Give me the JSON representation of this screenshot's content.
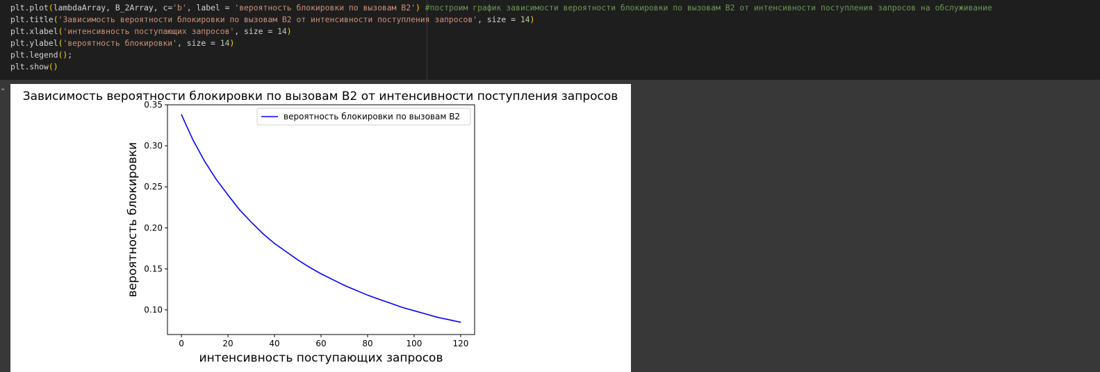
{
  "code": {
    "lines": [
      [
        {
          "t": "plt.plot",
          "c": "op"
        },
        {
          "t": "(",
          "c": "par"
        },
        {
          "t": "lambdaArray, B_2Array, c=",
          "c": "op"
        },
        {
          "t": "'b'",
          "c": "str"
        },
        {
          "t": ", label = ",
          "c": "op"
        },
        {
          "t": "'вероятность блокировки по вызовам B2'",
          "c": "str"
        },
        {
          "t": ")",
          "c": "par"
        },
        {
          "t": " ",
          "c": "op"
        },
        {
          "t": "#построим график зависимости вероятности блокировки по вызовам B2 от интенсивности поступления запросов на обслуживание",
          "c": "cmt"
        }
      ],
      [
        {
          "t": "plt.title",
          "c": "op"
        },
        {
          "t": "(",
          "c": "par"
        },
        {
          "t": "'Зависимость вероятности блокировки по вызовам B2 от интенсивности поступления запросов'",
          "c": "str"
        },
        {
          "t": ", size = ",
          "c": "op"
        },
        {
          "t": "14",
          "c": "num"
        },
        {
          "t": ")",
          "c": "par"
        }
      ],
      [
        {
          "t": "plt.xlabel",
          "c": "op"
        },
        {
          "t": "(",
          "c": "par"
        },
        {
          "t": "'интенсивность поступающих запросов'",
          "c": "str"
        },
        {
          "t": ", size = ",
          "c": "op"
        },
        {
          "t": "14",
          "c": "num"
        },
        {
          "t": ")",
          "c": "par"
        }
      ],
      [
        {
          "t": "plt.ylabel",
          "c": "op"
        },
        {
          "t": "(",
          "c": "par"
        },
        {
          "t": "'вероятность блокировки'",
          "c": "str"
        },
        {
          "t": ", size = ",
          "c": "op"
        },
        {
          "t": "14",
          "c": "num"
        },
        {
          "t": ")",
          "c": "par"
        }
      ],
      [
        {
          "t": "plt.legend",
          "c": "op"
        },
        {
          "t": "()",
          "c": "par"
        },
        {
          "t": ";",
          "c": "op"
        }
      ],
      [
        {
          "t": "plt.show",
          "c": "op"
        },
        {
          "t": "()",
          "c": "par"
        }
      ]
    ]
  },
  "output": {
    "collapse_icon": "chevron-down-icon"
  },
  "chart_data": {
    "type": "line",
    "title": "Зависимость вероятности блокировки по вызовам B2 от интенсивности поступления запросов",
    "xlabel": "интенсивность поступающих запросов",
    "ylabel": "вероятность блокировки",
    "xlim": [
      -6,
      126
    ],
    "ylim": [
      0.07,
      0.35
    ],
    "xticks": [
      "0",
      "20",
      "40",
      "60",
      "80",
      "100",
      "120"
    ],
    "yticks": [
      "0.10",
      "0.15",
      "0.20",
      "0.25",
      "0.30",
      "0.35"
    ],
    "grid": false,
    "legend_position": "top-right",
    "series": [
      {
        "name": "вероятность блокировки по вызовам B2",
        "color": "#0000ff",
        "x": [
          0,
          5,
          10,
          15,
          20,
          25,
          30,
          35,
          40,
          45,
          50,
          55,
          60,
          65,
          70,
          75,
          80,
          85,
          90,
          95,
          100,
          105,
          110,
          115,
          120
        ],
        "y": [
          0.338,
          0.307,
          0.281,
          0.259,
          0.24,
          0.222,
          0.207,
          0.193,
          0.181,
          0.171,
          0.161,
          0.152,
          0.144,
          0.137,
          0.13,
          0.124,
          0.118,
          0.113,
          0.108,
          0.103,
          0.099,
          0.095,
          0.091,
          0.088,
          0.085
        ]
      }
    ]
  }
}
